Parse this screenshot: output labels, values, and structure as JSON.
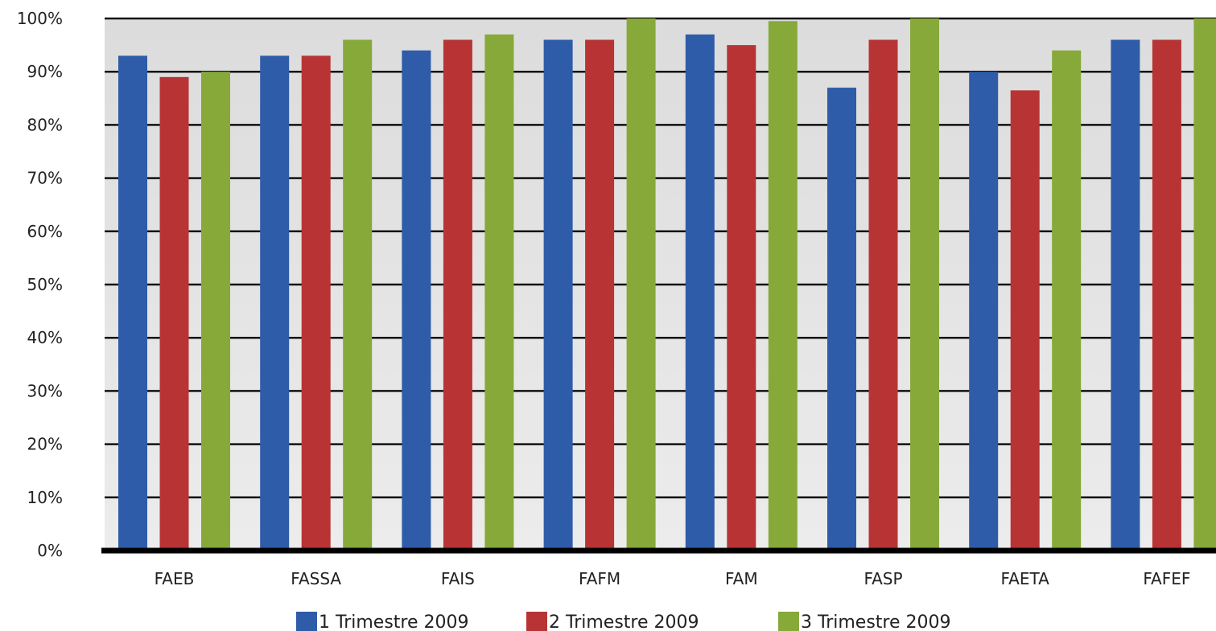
{
  "chart_data": {
    "type": "bar",
    "title": "",
    "xlabel": "",
    "ylabel": "",
    "ylim": [
      0,
      100
    ],
    "y_ticks": [
      "0%",
      "10%",
      "20%",
      "30%",
      "40%",
      "50%",
      "60%",
      "70%",
      "80%",
      "90%",
      "100%"
    ],
    "categories": [
      "FAEB",
      "FASSA",
      "FAIS",
      "FAFM",
      "FAM",
      "FASP",
      "FAETA",
      "FAFEF"
    ],
    "series": [
      {
        "name": "1 Trimestre 2009",
        "color": "#2e5ca8",
        "values": [
          93,
          93,
          94,
          96,
          97,
          87,
          90,
          96
        ]
      },
      {
        "name": "2 Trimestre 2009",
        "color": "#b83434",
        "values": [
          89,
          93,
          96,
          96,
          95,
          96,
          86.5,
          96
        ]
      },
      {
        "name": "3 Trimestre 2009",
        "color": "#86a93a",
        "values": [
          90,
          96,
          97,
          100,
          99.5,
          100,
          94,
          100
        ]
      }
    ],
    "grid": true,
    "legend_position": "bottom"
  }
}
